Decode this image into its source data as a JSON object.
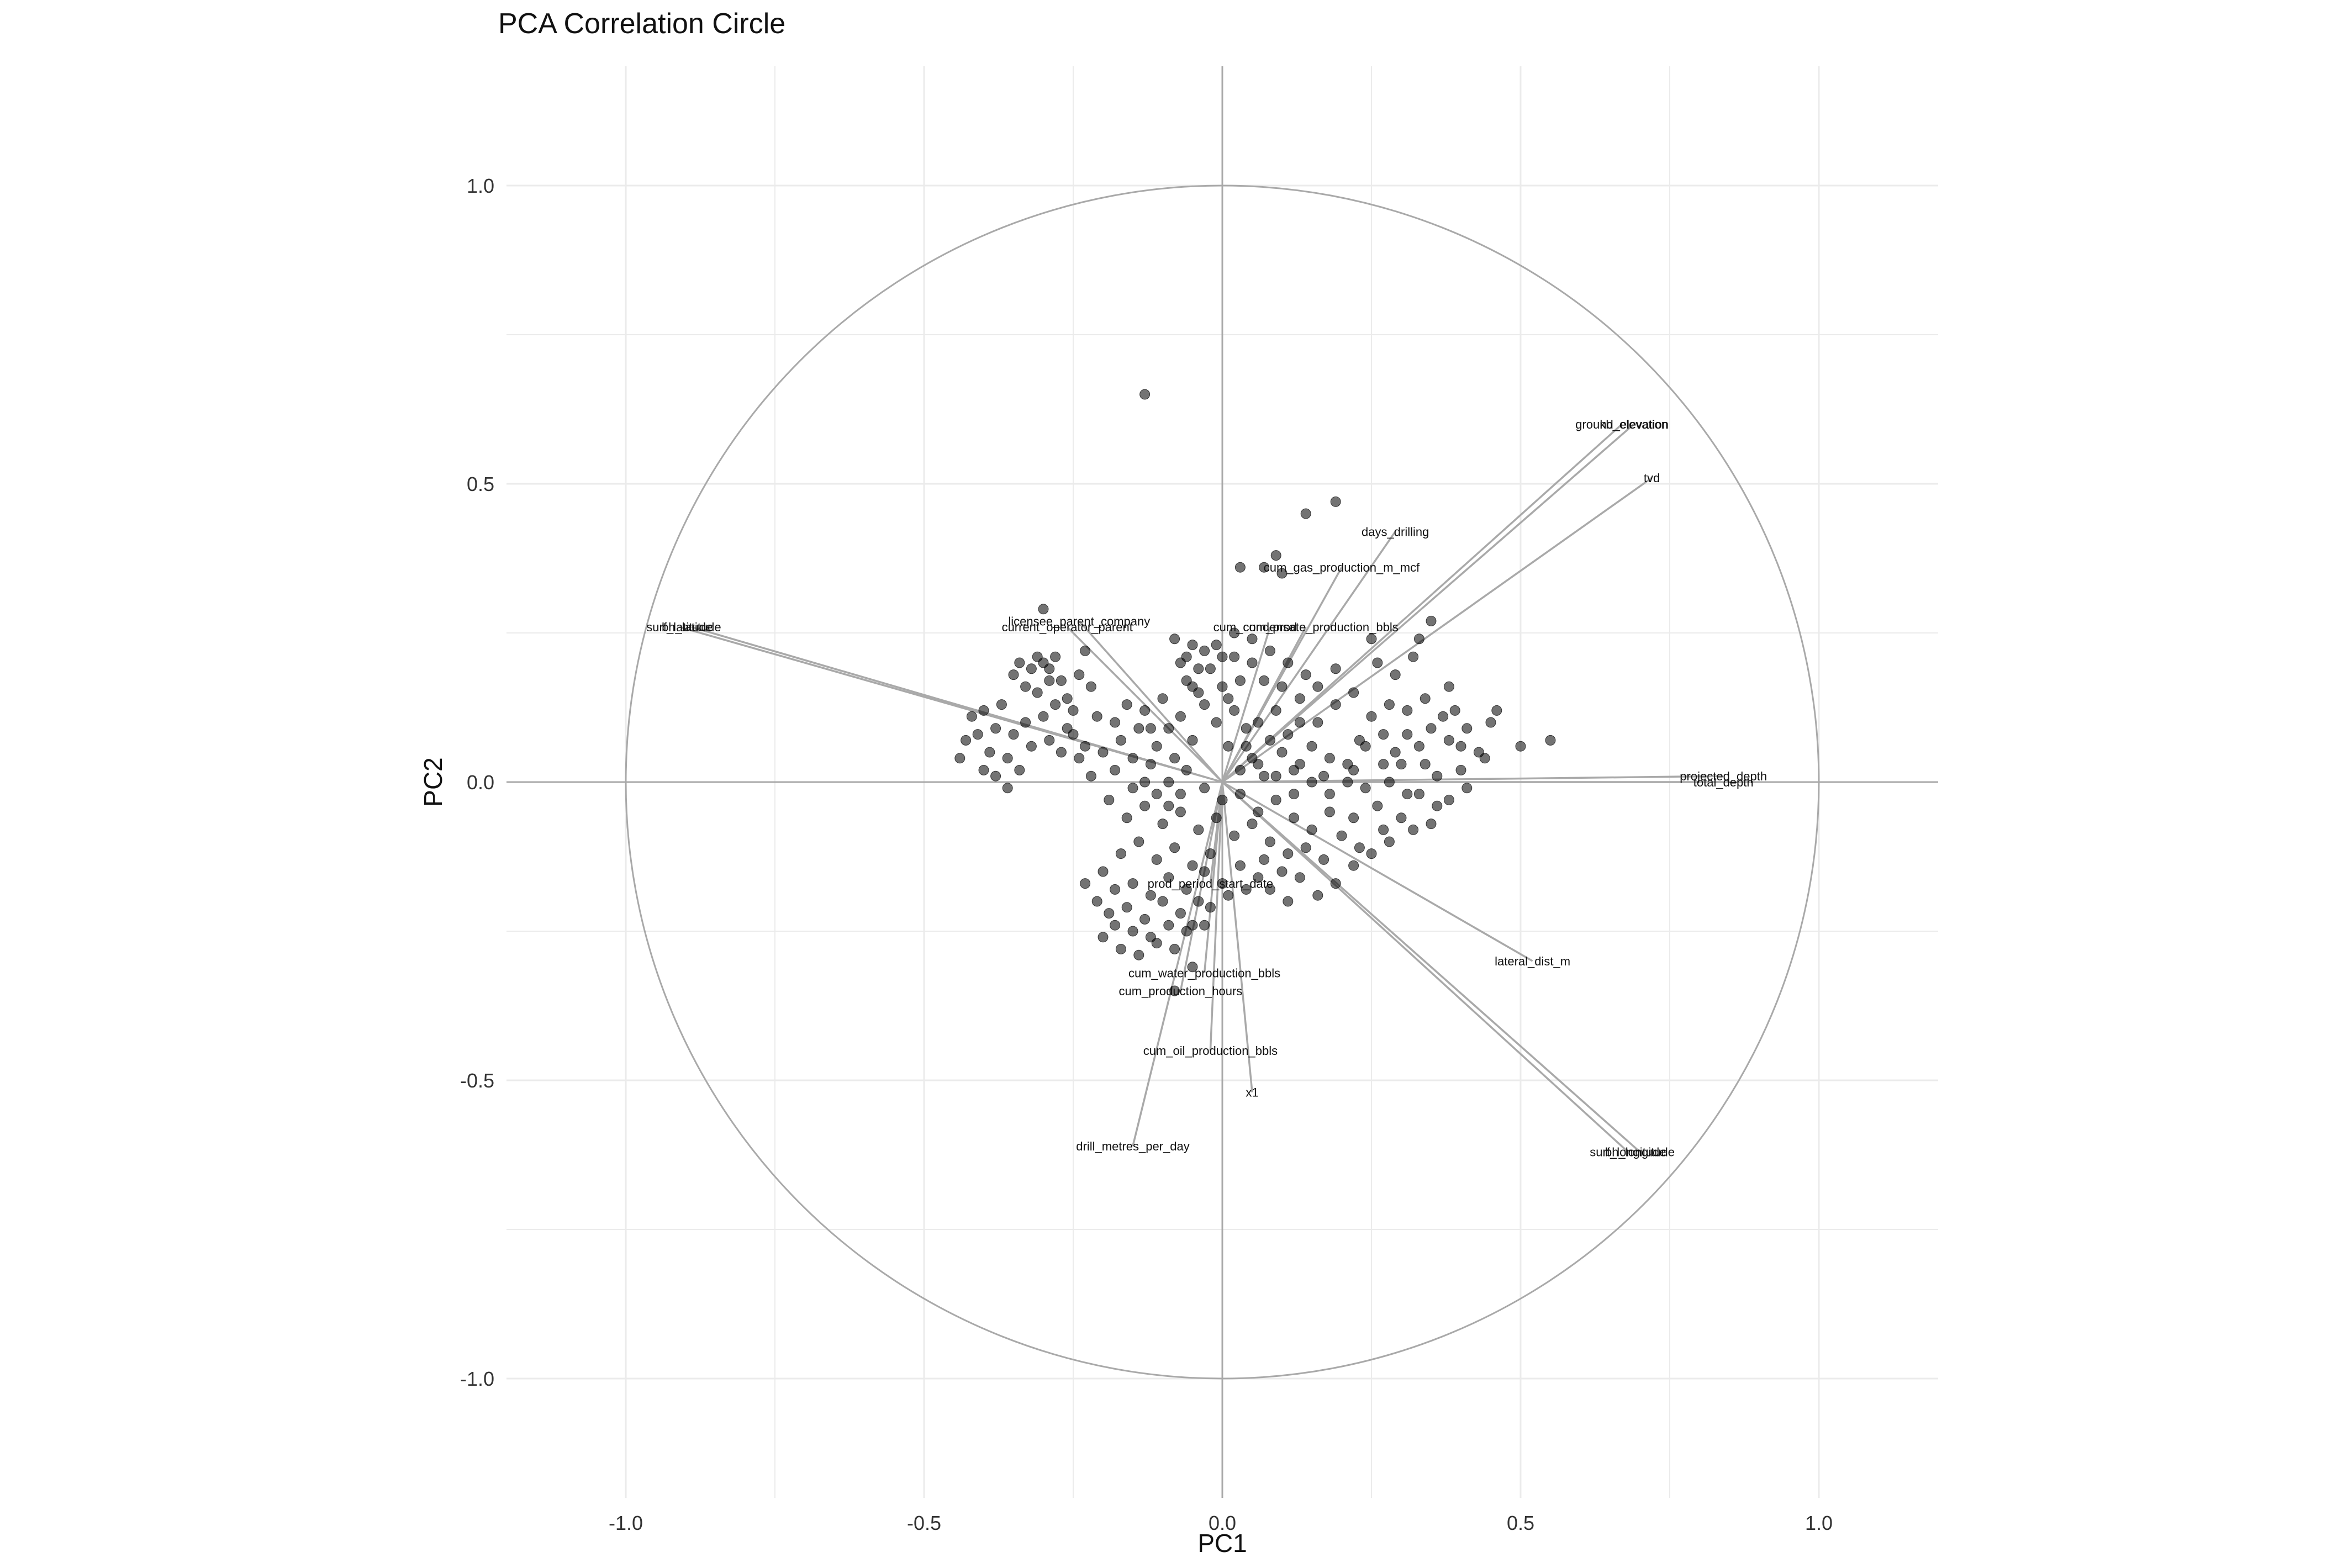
{
  "chart_data": {
    "type": "scatter",
    "title": "PCA Correlation Circle",
    "xlabel": "PC1",
    "ylabel": "PC2",
    "xlim": [
      -1.2,
      1.2
    ],
    "ylim": [
      -1.2,
      1.2
    ],
    "grid": true,
    "unit_circle": true,
    "x_ticks": [
      "-1.0",
      "-0.5",
      "0.0",
      "0.5",
      "1.0"
    ],
    "y_ticks": [
      "1.0",
      "0.5",
      "0.0",
      "-0.5",
      "-1.0"
    ],
    "x_tick_values": [
      -1.0,
      -0.5,
      0.0,
      0.5,
      1.0
    ],
    "y_tick_values": [
      1.0,
      0.5,
      0.0,
      -0.5,
      -1.0
    ],
    "colors": {
      "grid": "#ebebeb",
      "axis": "#a9a9a9",
      "circle": "#a9a9a9",
      "arrow": "#a9a9a9",
      "point": "#000000",
      "text": "#333333",
      "label": "#111111"
    },
    "loadings": [
      {
        "name": "ground_elevation",
        "x": 0.67,
        "y": 0.6
      },
      {
        "name": "kb_elevation",
        "x": 0.69,
        "y": 0.6
      },
      {
        "name": "tvd",
        "x": 0.72,
        "y": 0.51
      },
      {
        "name": "days_drilling",
        "x": 0.29,
        "y": 0.42
      },
      {
        "name": "cum_gas_production_m_mcf",
        "x": 0.2,
        "y": 0.36
      },
      {
        "name": "cum_condensate_production_bbls",
        "x": 0.14,
        "y": 0.26
      },
      {
        "name": "cum_prod",
        "x": 0.08,
        "y": 0.26
      },
      {
        "name": "licensee_parent_company",
        "x": -0.24,
        "y": 0.27
      },
      {
        "name": "current_operator_parent",
        "x": -0.26,
        "y": 0.26
      },
      {
        "name": "surf_latitude",
        "x": -0.91,
        "y": 0.26
      },
      {
        "name": "bh_latitude",
        "x": -0.89,
        "y": 0.26
      },
      {
        "name": "projected_depth",
        "x": 0.84,
        "y": 0.01
      },
      {
        "name": "total_depth",
        "x": 0.84,
        "y": 0.0
      },
      {
        "name": "prod_period_start_date",
        "x": -0.02,
        "y": -0.17
      },
      {
        "name": "lateral_dist_m",
        "x": 0.52,
        "y": -0.3
      },
      {
        "name": "cum_water_production_bbls",
        "x": -0.03,
        "y": -0.32
      },
      {
        "name": "cum_production_hours",
        "x": -0.07,
        "y": -0.35
      },
      {
        "name": "cum_oil_production_bbls",
        "x": -0.02,
        "y": -0.45
      },
      {
        "name": "x1",
        "x": 0.05,
        "y": -0.52
      },
      {
        "name": "drill_metres_per_day",
        "x": -0.15,
        "y": -0.61
      },
      {
        "name": "surf_longitude",
        "x": 0.68,
        "y": -0.62
      },
      {
        "name": "bh_longitude",
        "x": 0.7,
        "y": -0.62
      }
    ],
    "points": [
      [
        -0.13,
        0.65
      ],
      [
        0.19,
        0.47
      ],
      [
        0.14,
        0.45
      ],
      [
        0.09,
        0.38
      ],
      [
        0.07,
        0.36
      ],
      [
        0.03,
        0.36
      ],
      [
        0.1,
        0.35
      ],
      [
        0.35,
        0.27
      ],
      [
        0.33,
        0.24
      ],
      [
        0.25,
        0.24
      ],
      [
        0.38,
        0.16
      ],
      [
        0.46,
        0.12
      ],
      [
        0.45,
        0.1
      ],
      [
        0.5,
        0.06
      ],
      [
        0.55,
        0.07
      ],
      [
        0.43,
        0.05
      ],
      [
        0.44,
        0.04
      ],
      [
        0.4,
        0.06
      ],
      [
        0.41,
        0.09
      ],
      [
        0.37,
        0.11
      ],
      [
        0.4,
        0.02
      ],
      [
        0.34,
        0.03
      ],
      [
        0.31,
        0.08
      ],
      [
        0.29,
        0.05
      ],
      [
        0.27,
        0.03
      ],
      [
        0.23,
        0.07
      ],
      [
        0.22,
        0.02
      ],
      [
        0.18,
        0.04
      ],
      [
        0.15,
        0.06
      ],
      [
        0.12,
        0.02
      ],
      [
        0.1,
        0.05
      ],
      [
        0.07,
        0.01
      ],
      [
        0.05,
        0.04
      ],
      [
        0.03,
        0.02
      ],
      [
        0.01,
        0.06
      ],
      [
        0.06,
        0.1
      ],
      [
        0.09,
        0.12
      ],
      [
        0.13,
        0.14
      ],
      [
        0.16,
        0.1
      ],
      [
        0.19,
        0.13
      ],
      [
        0.14,
        0.18
      ],
      [
        0.11,
        0.2
      ],
      [
        0.08,
        0.22
      ],
      [
        0.05,
        0.24
      ],
      [
        0.02,
        0.25
      ],
      [
        0.0,
        0.21
      ],
      [
        -0.02,
        0.19
      ],
      [
        -0.04,
        0.15
      ],
      [
        -0.05,
        0.23
      ],
      [
        -0.06,
        0.17
      ],
      [
        0.03,
        0.17
      ],
      [
        0.01,
        0.14
      ],
      [
        -0.01,
        0.1
      ],
      [
        0.04,
        0.09
      ],
      [
        0.08,
        0.07
      ],
      [
        0.11,
        0.08
      ],
      [
        0.13,
        0.03
      ],
      [
        0.17,
        0.01
      ],
      [
        0.21,
        0.0
      ],
      [
        0.24,
        -0.01
      ],
      [
        0.26,
        -0.04
      ],
      [
        0.22,
        -0.06
      ],
      [
        0.18,
        -0.05
      ],
      [
        0.15,
        -0.08
      ],
      [
        0.12,
        -0.06
      ],
      [
        0.09,
        -0.03
      ],
      [
        0.06,
        -0.05
      ],
      [
        0.03,
        -0.02
      ],
      [
        0.0,
        -0.03
      ],
      [
        -0.03,
        -0.01
      ],
      [
        -0.06,
        0.02
      ],
      [
        -0.09,
        0.0
      ],
      [
        -0.12,
        0.03
      ],
      [
        -0.15,
        -0.01
      ],
      [
        -0.18,
        0.02
      ],
      [
        -0.2,
        0.05
      ],
      [
        -0.22,
        0.01
      ],
      [
        -0.24,
        0.04
      ],
      [
        -0.17,
        0.07
      ],
      [
        -0.14,
        0.09
      ],
      [
        -0.11,
        0.06
      ],
      [
        -0.08,
        0.04
      ],
      [
        -0.05,
        0.07
      ],
      [
        -0.19,
        -0.03
      ],
      [
        -0.16,
        -0.06
      ],
      [
        -0.13,
        -0.04
      ],
      [
        -0.1,
        -0.07
      ],
      [
        -0.07,
        -0.05
      ],
      [
        -0.04,
        -0.08
      ],
      [
        -0.01,
        -0.06
      ],
      [
        0.02,
        -0.09
      ],
      [
        0.05,
        -0.07
      ],
      [
        0.08,
        -0.1
      ],
      [
        0.11,
        -0.12
      ],
      [
        0.14,
        -0.11
      ],
      [
        0.17,
        -0.13
      ],
      [
        0.2,
        -0.09
      ],
      [
        0.23,
        -0.11
      ],
      [
        0.27,
        -0.08
      ],
      [
        0.3,
        -0.06
      ],
      [
        0.33,
        -0.02
      ],
      [
        0.36,
        -0.04
      ],
      [
        -0.02,
        -0.12
      ],
      [
        -0.05,
        -0.14
      ],
      [
        -0.08,
        -0.11
      ],
      [
        -0.11,
        -0.13
      ],
      [
        -0.14,
        -0.1
      ],
      [
        -0.17,
        -0.12
      ],
      [
        -0.2,
        -0.15
      ],
      [
        -0.18,
        -0.18
      ],
      [
        -0.15,
        -0.17
      ],
      [
        -0.12,
        -0.19
      ],
      [
        -0.09,
        -0.16
      ],
      [
        -0.06,
        -0.18
      ],
      [
        -0.03,
        -0.15
      ],
      [
        0.0,
        -0.17
      ],
      [
        0.03,
        -0.14
      ],
      [
        0.06,
        -0.16
      ],
      [
        -0.16,
        -0.21
      ],
      [
        -0.13,
        -0.23
      ],
      [
        -0.1,
        -0.2
      ],
      [
        -0.07,
        -0.22
      ],
      [
        -0.04,
        -0.2
      ],
      [
        -0.19,
        -0.22
      ],
      [
        -0.15,
        -0.25
      ],
      [
        -0.12,
        -0.26
      ],
      [
        -0.09,
        -0.24
      ],
      [
        -0.06,
        -0.25
      ],
      [
        -0.18,
        -0.24
      ],
      [
        -0.21,
        -0.2
      ],
      [
        -0.23,
        -0.17
      ],
      [
        -0.2,
        -0.26
      ],
      [
        -0.17,
        -0.28
      ],
      [
        -0.14,
        -0.29
      ],
      [
        -0.11,
        -0.27
      ],
      [
        -0.08,
        -0.28
      ],
      [
        -0.05,
        -0.24
      ],
      [
        -0.02,
        -0.21
      ],
      [
        0.01,
        -0.19
      ],
      [
        0.04,
        -0.18
      ],
      [
        0.07,
        -0.13
      ],
      [
        0.1,
        -0.15
      ],
      [
        -0.08,
        -0.35
      ],
      [
        -0.05,
        -0.31
      ],
      [
        -0.03,
        -0.24
      ],
      [
        -0.4,
        0.12
      ],
      [
        -0.42,
        0.11
      ],
      [
        -0.41,
        0.08
      ],
      [
        -0.43,
        0.07
      ],
      [
        -0.39,
        0.05
      ],
      [
        -0.38,
        0.09
      ],
      [
        -0.37,
        0.13
      ],
      [
        -0.36,
        0.04
      ],
      [
        -0.35,
        0.08
      ],
      [
        -0.34,
        0.02
      ],
      [
        -0.33,
        0.1
      ],
      [
        -0.32,
        0.06
      ],
      [
        -0.31,
        0.15
      ],
      [
        -0.3,
        0.2
      ],
      [
        -0.29,
        0.19
      ],
      [
        -0.28,
        0.21
      ],
      [
        -0.27,
        0.17
      ],
      [
        -0.26,
        0.14
      ],
      [
        -0.25,
        0.12
      ],
      [
        -0.24,
        0.18
      ],
      [
        -0.23,
        0.22
      ],
      [
        -0.22,
        0.16
      ],
      [
        -0.21,
        0.11
      ],
      [
        -0.3,
        0.11
      ],
      [
        -0.28,
        0.13
      ],
      [
        -0.26,
        0.09
      ],
      [
        -0.29,
        0.07
      ],
      [
        -0.27,
        0.05
      ],
      [
        -0.25,
        0.08
      ],
      [
        -0.23,
        0.06
      ],
      [
        -0.3,
        0.29
      ],
      [
        -0.44,
        0.04
      ],
      [
        -0.4,
        0.02
      ],
      [
        -0.38,
        0.01
      ],
      [
        -0.36,
        -0.01
      ],
      [
        -0.08,
        0.24
      ],
      [
        -0.06,
        0.21
      ],
      [
        -0.04,
        0.19
      ],
      [
        -0.05,
        0.16
      ],
      [
        -0.03,
        0.13
      ],
      [
        0.0,
        0.16
      ],
      [
        0.02,
        0.12
      ],
      [
        0.04,
        0.06
      ],
      [
        0.06,
        0.03
      ],
      [
        0.09,
        0.01
      ],
      [
        0.12,
        -0.02
      ],
      [
        0.15,
        0.0
      ],
      [
        0.18,
        -0.02
      ],
      [
        0.21,
        0.03
      ],
      [
        0.24,
        0.06
      ],
      [
        0.27,
        0.08
      ],
      [
        0.28,
        0.0
      ],
      [
        0.31,
        -0.02
      ],
      [
        0.25,
        0.11
      ],
      [
        0.28,
        0.13
      ],
      [
        0.31,
        0.12
      ],
      [
        0.34,
        0.14
      ],
      [
        0.29,
        0.18
      ],
      [
        0.32,
        0.21
      ],
      [
        0.26,
        0.2
      ],
      [
        0.22,
        0.15
      ],
      [
        0.19,
        0.19
      ],
      [
        0.16,
        0.16
      ],
      [
        0.13,
        0.1
      ],
      [
        0.1,
        0.16
      ],
      [
        0.07,
        0.17
      ],
      [
        0.05,
        0.2
      ],
      [
        0.02,
        0.21
      ],
      [
        -0.01,
        0.23
      ],
      [
        -0.03,
        0.22
      ],
      [
        -0.07,
        0.2
      ],
      [
        0.35,
        0.09
      ],
      [
        0.38,
        0.07
      ],
      [
        0.39,
        0.12
      ],
      [
        0.36,
        0.01
      ],
      [
        0.33,
        0.06
      ],
      [
        0.3,
        0.03
      ],
      [
        -0.33,
        0.16
      ],
      [
        -0.35,
        0.18
      ],
      [
        -0.32,
        0.19
      ],
      [
        -0.34,
        0.2
      ],
      [
        -0.31,
        0.21
      ],
      [
        -0.29,
        0.17
      ],
      [
        -0.18,
        0.1
      ],
      [
        -0.16,
        0.13
      ],
      [
        -0.13,
        0.12
      ],
      [
        -0.1,
        0.14
      ],
      [
        -0.12,
        0.09
      ],
      [
        -0.09,
        0.09
      ],
      [
        -0.07,
        0.11
      ],
      [
        -0.15,
        0.04
      ],
      [
        -0.13,
        0.0
      ],
      [
        -0.11,
        -0.02
      ],
      [
        -0.09,
        -0.04
      ],
      [
        -0.07,
        -0.02
      ],
      [
        0.08,
        -0.18
      ],
      [
        0.11,
        -0.2
      ],
      [
        0.13,
        -0.16
      ],
      [
        0.16,
        -0.19
      ],
      [
        0.19,
        -0.17
      ],
      [
        0.22,
        -0.14
      ],
      [
        0.25,
        -0.12
      ],
      [
        0.28,
        -0.1
      ],
      [
        0.32,
        -0.08
      ],
      [
        0.35,
        -0.07
      ],
      [
        0.38,
        -0.03
      ],
      [
        0.41,
        -0.01
      ]
    ]
  }
}
